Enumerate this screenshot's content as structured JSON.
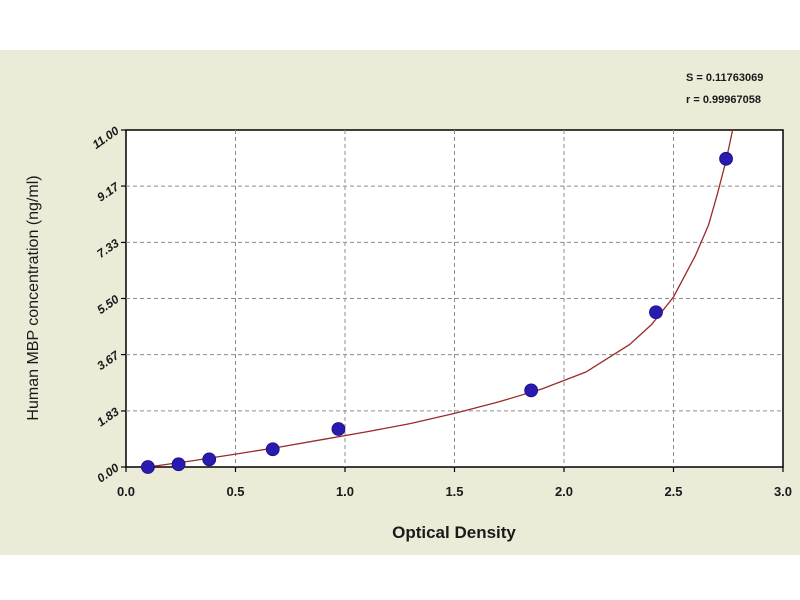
{
  "chart_data": {
    "type": "scatter",
    "title": "",
    "xlabel": "Optical Density",
    "ylabel": "Human MBP concentration (ng/ml)",
    "xlim": [
      0.0,
      3.0
    ],
    "ylim": [
      0.0,
      11.0
    ],
    "x_ticks": [
      0.0,
      0.5,
      1.0,
      1.5,
      2.0,
      2.5,
      3.0
    ],
    "x_tick_labels": [
      "0.0",
      "0.5",
      "1.0",
      "1.5",
      "2.0",
      "2.5",
      "3.0"
    ],
    "y_ticks": [
      0.0,
      1.83,
      3.67,
      5.5,
      7.33,
      9.17,
      11.0
    ],
    "y_tick_labels": [
      "0.00",
      "1.83",
      "3.67",
      "5.50",
      "7.33",
      "9.17",
      "11.00"
    ],
    "grid": true,
    "series": [
      {
        "kind": "points",
        "color": "#2a1bb0",
        "x": [
          0.1,
          0.24,
          0.38,
          0.67,
          0.97,
          1.85,
          2.42,
          2.74
        ],
        "y": [
          0.0,
          0.09,
          0.25,
          0.58,
          1.24,
          2.5,
          5.05,
          10.06
        ]
      },
      {
        "kind": "fit-curve",
        "color": "#9a2a2a",
        "x": [
          0.1,
          0.3,
          0.5,
          0.7,
          0.9,
          1.1,
          1.3,
          1.5,
          1.7,
          1.9,
          2.1,
          2.3,
          2.4,
          2.5,
          2.6,
          2.66,
          2.7,
          2.74,
          2.77
        ],
        "y": [
          0.0,
          0.2,
          0.42,
          0.65,
          0.9,
          1.15,
          1.42,
          1.75,
          2.12,
          2.55,
          3.1,
          4.0,
          4.65,
          5.55,
          6.9,
          7.9,
          8.9,
          10.0,
          11.0
        ]
      }
    ],
    "annotations": [
      "S = 0.11763069",
      "r = 0.99967058"
    ]
  }
}
